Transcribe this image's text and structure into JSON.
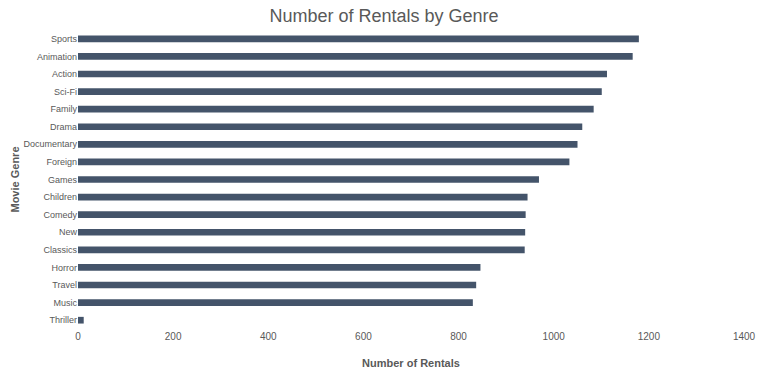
{
  "chart_data": {
    "type": "bar",
    "orientation": "horizontal",
    "title": "Number of Rentals by Genre",
    "x_label": "Number of Rentals",
    "y_label": "Movie Genre",
    "categories": [
      "Sports",
      "Animation",
      "Action",
      "Sci-Fi",
      "Family",
      "Drama",
      "Documentary",
      "Foreign",
      "Games",
      "Children",
      "Comedy",
      "New",
      "Classics",
      "Horror",
      "Travel",
      "Music",
      "Thriller"
    ],
    "values": [
      1179,
      1166,
      1112,
      1101,
      1084,
      1060,
      1050,
      1033,
      969,
      945,
      941,
      940,
      939,
      846,
      837,
      830,
      12
    ],
    "color": "#44546a",
    "xlim": [
      0,
      1400
    ],
    "xticks": [
      0,
      200,
      400,
      600,
      800,
      1000,
      1200,
      1400
    ],
    "grid": false
  }
}
